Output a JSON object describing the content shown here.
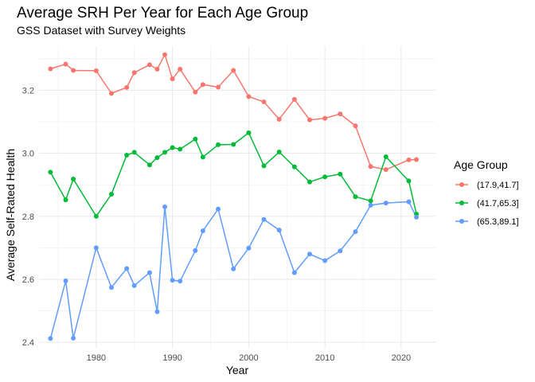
{
  "chart_data": {
    "type": "line",
    "title": "Average SRH Per Year for Each Age Group",
    "subtitle": "GSS Dataset with Survey Weights",
    "xlabel": "Year",
    "ylabel": "Average Self-Rated Health",
    "xlim": [
      1972.5,
      2024.5
    ],
    "ylim": [
      2.38,
      3.34
    ],
    "x_ticks": [
      1980,
      1990,
      2000,
      2010,
      2020
    ],
    "y_ticks": [
      2.4,
      2.6,
      2.8,
      3.0,
      3.2
    ],
    "x_tick_labels": [
      "1980",
      "1990",
      "2000",
      "2010",
      "2020"
    ],
    "y_tick_labels": [
      "2.4",
      "2.6",
      "2.8",
      "3.0",
      "3.2"
    ],
    "grid": true,
    "legend": {
      "title": "Age Group",
      "position": "right"
    },
    "x": [
      1974,
      1976,
      1977,
      1980,
      1982,
      1984,
      1985,
      1987,
      1988,
      1989,
      1990,
      1991,
      1993,
      1994,
      1996,
      1998,
      2000,
      2002,
      2004,
      2006,
      2008,
      2010,
      2012,
      2014,
      2016,
      2018,
      2021,
      2022
    ],
    "series": [
      {
        "name": "(17.9,41.7]",
        "color": "#F8766D",
        "values": [
          3.268,
          3.283,
          3.263,
          3.262,
          3.19,
          3.209,
          3.256,
          3.281,
          3.267,
          3.313,
          3.236,
          3.267,
          3.194,
          3.218,
          3.21,
          3.263,
          3.18,
          3.163,
          3.108,
          3.171,
          3.106,
          3.111,
          3.125,
          3.087,
          2.958,
          2.948,
          2.979,
          2.98
        ]
      },
      {
        "name": "(41.7,65.3]",
        "color": "#00BA38",
        "values": [
          2.94,
          2.852,
          2.918,
          2.8,
          2.87,
          2.994,
          3.003,
          2.963,
          2.986,
          3.003,
          3.018,
          3.013,
          3.045,
          2.988,
          3.027,
          3.028,
          3.065,
          2.96,
          3.004,
          2.957,
          2.909,
          2.925,
          2.934,
          2.862,
          2.849,
          2.989,
          2.912,
          2.807
        ]
      },
      {
        "name": "(65.3,89.1]",
        "color": "#619CFF",
        "values": [
          2.412,
          2.595,
          2.413,
          2.7,
          2.574,
          2.634,
          2.58,
          2.621,
          2.497,
          2.83,
          2.597,
          2.594,
          2.691,
          2.754,
          2.823,
          2.633,
          2.699,
          2.79,
          2.756,
          2.621,
          2.68,
          2.659,
          2.69,
          2.751,
          2.835,
          2.842,
          2.846,
          2.797
        ]
      }
    ]
  }
}
